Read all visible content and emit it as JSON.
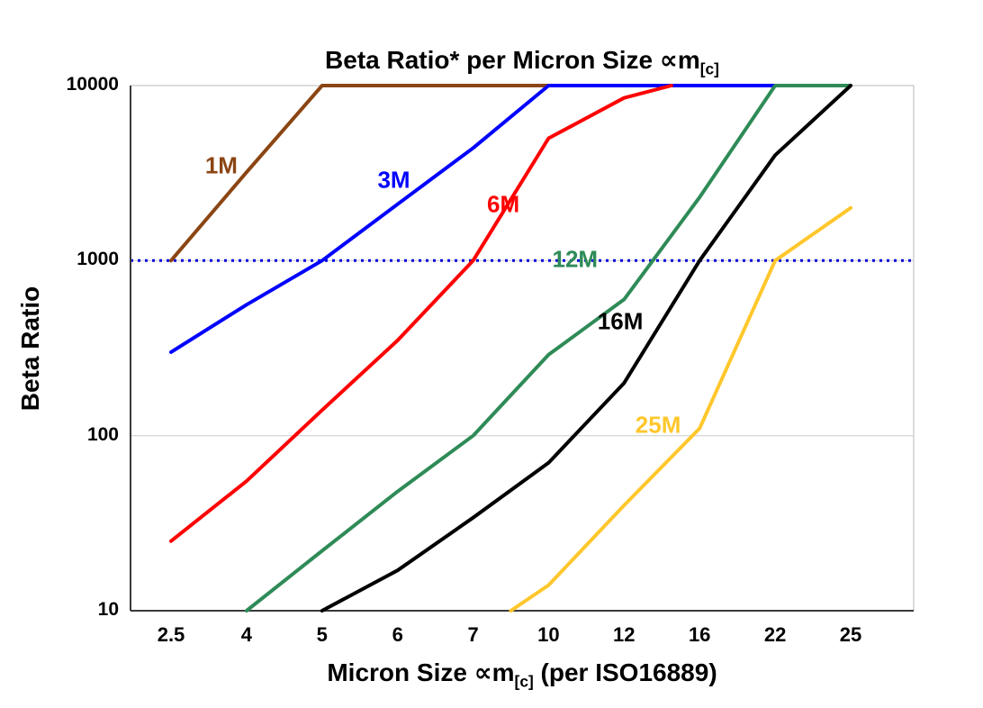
{
  "chart_data": {
    "type": "line",
    "title_prefix": "Beta Ratio* per Micron Size ∝m",
    "title_sub": "[c]",
    "ylabel": "Beta Ratio",
    "xlabel_prefix": "Micron Size ∝m",
    "xlabel_sub": "[c]",
    "xlabel_suffix": " (per ISO16889)",
    "x_categories": [
      2.5,
      4,
      5,
      6,
      7,
      10,
      12,
      16,
      22,
      25
    ],
    "y_ticks": [
      10,
      100,
      1000,
      10000
    ],
    "y_scale": "log",
    "ylim": [
      10,
      10000
    ],
    "grid": {
      "horizontal_at": [
        100,
        1000
      ],
      "color": "#cccccc"
    },
    "reference_line": {
      "y": 1000,
      "color": "#0000dd",
      "style": "dotted",
      "name": "beta-1000-reference-line"
    },
    "legend": "inline-labels",
    "series": [
      {
        "name": "1M",
        "color": "#8B4513",
        "label_pos": {
          "x": 3.5,
          "y": 3500
        },
        "points": [
          [
            2.5,
            1000
          ],
          [
            4,
            3200
          ],
          [
            5,
            10000
          ],
          [
            10,
            10000
          ]
        ]
      },
      {
        "name": "3M",
        "color": "#0000FF",
        "label_pos": {
          "x": 5.95,
          "y": 2900
        },
        "points": [
          [
            2.5,
            300
          ],
          [
            4,
            560
          ],
          [
            5,
            1000
          ],
          [
            6,
            2100
          ],
          [
            7,
            4400
          ],
          [
            10,
            10000
          ],
          [
            22,
            10000
          ]
        ]
      },
      {
        "name": "6M",
        "color": "#FF0000",
        "label_pos": {
          "x": 8.2,
          "y": 2100
        },
        "points": [
          [
            2.5,
            25
          ],
          [
            4,
            55
          ],
          [
            5,
            140
          ],
          [
            6,
            350
          ],
          [
            7,
            1000
          ],
          [
            10,
            5000
          ],
          [
            12,
            8500
          ],
          [
            14.5,
            10000
          ]
        ]
      },
      {
        "name": "12M",
        "color": "#2E8B57",
        "label_pos": {
          "x": 10.7,
          "y": 1020
        },
        "points": [
          [
            4,
            10
          ],
          [
            5,
            22
          ],
          [
            6,
            48
          ],
          [
            7,
            100
          ],
          [
            10,
            290
          ],
          [
            12,
            600
          ],
          [
            16,
            2300
          ],
          [
            22,
            10000
          ],
          [
            25,
            10000
          ]
        ]
      },
      {
        "name": "16M",
        "color": "#000000",
        "label_pos": {
          "x": 11.9,
          "y": 450
        },
        "points": [
          [
            5,
            10
          ],
          [
            6,
            17
          ],
          [
            7,
            34
          ],
          [
            10,
            70
          ],
          [
            12,
            200
          ],
          [
            16,
            1000
          ],
          [
            22,
            4000
          ],
          [
            25,
            10000
          ]
        ]
      },
      {
        "name": "25M",
        "color": "#FFC72C",
        "label_pos": {
          "x": 13.8,
          "y": 115
        },
        "points": [
          [
            8.5,
            10
          ],
          [
            10,
            14
          ],
          [
            12,
            40
          ],
          [
            16,
            110
          ],
          [
            22,
            1000
          ],
          [
            25,
            2000
          ]
        ]
      }
    ]
  }
}
